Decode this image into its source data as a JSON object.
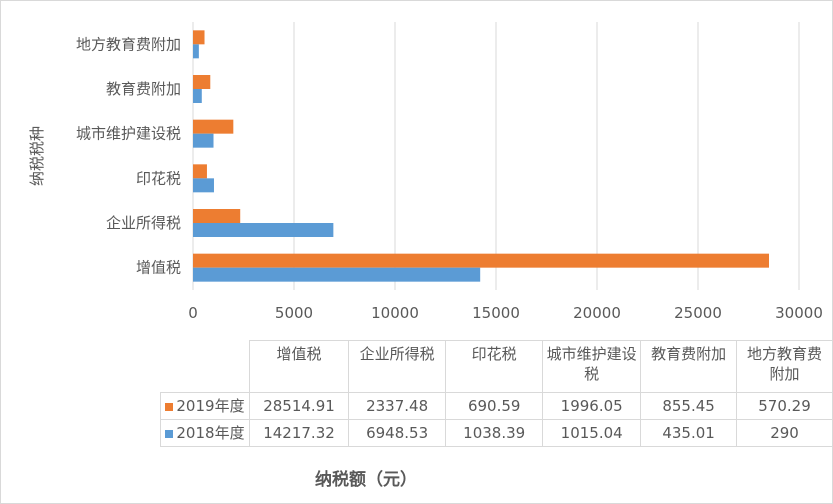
{
  "chart_data": {
    "type": "bar",
    "orientation": "horizontal",
    "categories": [
      "增值税",
      "企业所得税",
      "印花税",
      "城市维护建设税",
      "教育费附加",
      "地方教育费附加"
    ],
    "table_headers": [
      "增值税",
      "企业所得税",
      "印花税",
      "城市维护建设\n税",
      "教育费附加",
      "地方教育费\n附加"
    ],
    "series": [
      {
        "name": "2019年度",
        "color": "#ed7d31",
        "values": [
          28514.91,
          2337.48,
          690.59,
          1996.05,
          855.45,
          570.29
        ],
        "labels": [
          "28514.91",
          "2337.48",
          "690.59",
          "1996.05",
          "855.45",
          "570.29"
        ]
      },
      {
        "name": "2018年度",
        "color": "#5b9bd5",
        "values": [
          14217.32,
          6948.53,
          1038.39,
          1015.04,
          435.01,
          290
        ],
        "labels": [
          "14217.32",
          "6948.53",
          "1038.39",
          "1015.04",
          "435.01",
          "290"
        ]
      }
    ],
    "xlim": [
      0,
      30000
    ],
    "xticks": [
      "0",
      "5000",
      "10000",
      "15000",
      "20000",
      "25000",
      "30000"
    ],
    "xlabel": "纳税额（元）",
    "ylabel": "纳税税种",
    "grid": true,
    "legend": "data-table"
  }
}
